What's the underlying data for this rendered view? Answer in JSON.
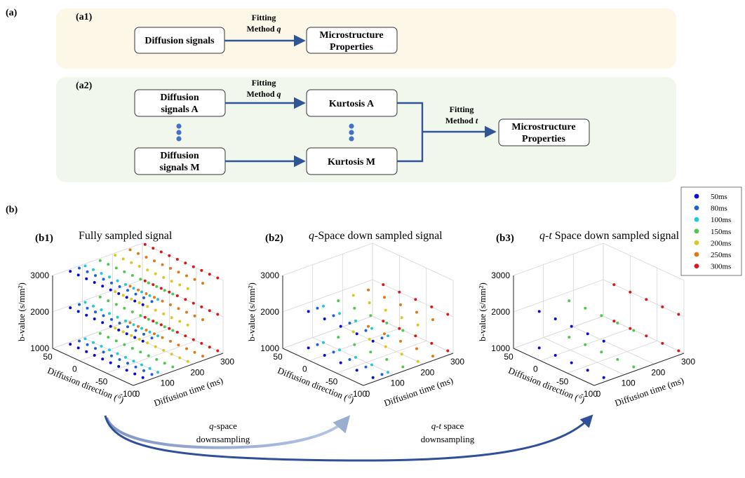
{
  "panel_a": {
    "label": "(a)",
    "a1": {
      "label": "(a1)",
      "input_box": "Diffusion signals",
      "arrow_label_line1": "Fitting",
      "arrow_label_line2": "Method ",
      "arrow_label_var": "q",
      "output_line1": "Microstructure",
      "output_line2": "Properties"
    },
    "a2": {
      "label": "(a2)",
      "input_a_line1": "Diffusion",
      "input_a_line2": "signals A",
      "input_m_line1": "Diffusion",
      "input_m_line2": "signals M",
      "fit_q_line1": "Fitting",
      "fit_q_line2": "Method ",
      "fit_q_var": "q",
      "kurtosis_a": "Kurtosis A",
      "kurtosis_m": "Kurtosis M",
      "fit_t_line1": "Fitting",
      "fit_t_line2": "Method ",
      "fit_t_var": "t",
      "output_line1": "Microstructure",
      "output_line2": "Properties"
    }
  },
  "panel_b": {
    "label": "(b)",
    "legend": [
      {
        "label": "50ms",
        "color": "#0a0ad0"
      },
      {
        "label": "80ms",
        "color": "#1f5fd6"
      },
      {
        "label": "100ms",
        "color": "#20c8d8"
      },
      {
        "label": "150ms",
        "color": "#50c850"
      },
      {
        "label": "200ms",
        "color": "#d8c820"
      },
      {
        "label": "250ms",
        "color": "#e07818"
      },
      {
        "label": "300ms",
        "color": "#d81818"
      }
    ],
    "plots": [
      {
        "id": "b1",
        "label": "(b1)",
        "title_var": "",
        "title_text": "Fully sampled signal"
      },
      {
        "id": "b2",
        "label": "(b2)",
        "title_var": "q",
        "title_text": "-Space down sampled signal"
      },
      {
        "id": "b3",
        "label": "(b3)",
        "title_var": "q-t",
        "title_text": " Space down sampled signal"
      }
    ],
    "axes": {
      "z_label": "b-value (s/mm²)",
      "z_ticks": [
        "1000",
        "2000",
        "3000"
      ],
      "y_label": "Diffusion direction (°)",
      "y_ticks": [
        "50",
        "0",
        "-50",
        "-100"
      ],
      "x_label": "Diffusion time (ms)",
      "x_ticks": [
        "0",
        "100",
        "200",
        "300"
      ]
    },
    "arrows": {
      "q_line1_var": "q",
      "q_line1_text": "-space",
      "q_line2": "downsampling",
      "qt_line1_var": "q-t",
      "qt_line1_text": " space",
      "qt_line2": "downsampling"
    }
  },
  "chart_data": [
    {
      "type": "scatter",
      "title": "Fully sampled signal",
      "xlabel": "Diffusion time (ms)",
      "ylabel": "Diffusion direction (°)",
      "zlabel": "b-value (s/mm²)",
      "xlim": [
        0,
        300
      ],
      "ylim": [
        -100,
        50
      ],
      "zlim": [
        1000,
        3000
      ],
      "series": [
        {
          "name": "50ms",
          "x": 50,
          "b_values": [
            1000,
            2000,
            3000
          ],
          "directions": [
            -90,
            -75,
            -60,
            -45,
            -30,
            -15,
            0,
            15,
            30,
            45
          ]
        },
        {
          "name": "80ms",
          "x": 80,
          "b_values": [
            1000,
            2000,
            3000
          ],
          "directions": [
            -90,
            -75,
            -60,
            -45,
            -30,
            -15,
            0,
            15,
            30,
            45
          ]
        },
        {
          "name": "100ms",
          "x": 100,
          "b_values": [
            1000,
            2000,
            3000
          ],
          "directions": [
            -90,
            -75,
            -60,
            -45,
            -30,
            -15,
            0,
            15,
            30,
            45
          ]
        },
        {
          "name": "150ms",
          "x": 150,
          "b_values": [
            1000,
            2000,
            3000
          ],
          "directions": [
            -90,
            -75,
            -60,
            -45,
            -30,
            -15,
            0,
            15,
            30,
            45
          ]
        },
        {
          "name": "200ms",
          "x": 200,
          "b_values": [
            1000,
            2000,
            3000
          ],
          "directions": [
            -90,
            -75,
            -60,
            -45,
            -30,
            -15,
            0,
            15,
            30,
            45
          ]
        },
        {
          "name": "250ms",
          "x": 250,
          "b_values": [
            1000,
            2000,
            3000
          ],
          "directions": [
            -90,
            -75,
            -60,
            -45,
            -30,
            -15,
            0,
            15,
            30,
            45
          ]
        },
        {
          "name": "300ms",
          "x": 300,
          "b_values": [
            1000,
            2000,
            3000
          ],
          "directions": [
            -90,
            -75,
            -60,
            -45,
            -30,
            -15,
            0,
            15,
            30,
            45
          ]
        }
      ]
    },
    {
      "type": "scatter",
      "title": "q-Space down sampled signal",
      "xlabel": "Diffusion time (ms)",
      "ylabel": "Diffusion direction (°)",
      "zlabel": "b-value (s/mm²)",
      "xlim": [
        0,
        300
      ],
      "ylim": [
        -100,
        50
      ],
      "zlim": [
        1000,
        3000
      ],
      "series": [
        {
          "name": "50ms",
          "x": 50,
          "b_values": [
            1000,
            2000
          ],
          "directions": [
            -90,
            -60,
            -30,
            0,
            30
          ]
        },
        {
          "name": "80ms",
          "x": 80,
          "b_values": [
            1000,
            2000
          ],
          "directions": [
            -90,
            -60,
            -30,
            0,
            30
          ]
        },
        {
          "name": "100ms",
          "x": 100,
          "b_values": [
            1000,
            2000
          ],
          "directions": [
            -90,
            -60,
            -30,
            0,
            30
          ]
        },
        {
          "name": "150ms",
          "x": 150,
          "b_values": [
            1000,
            2000
          ],
          "directions": [
            -90,
            -60,
            -30,
            0,
            30
          ]
        },
        {
          "name": "200ms",
          "x": 200,
          "b_values": [
            1000,
            2000
          ],
          "directions": [
            -90,
            -60,
            -30,
            0,
            30
          ]
        },
        {
          "name": "250ms",
          "x": 250,
          "b_values": [
            1000,
            2000
          ],
          "directions": [
            -90,
            -60,
            -30,
            0,
            30
          ]
        },
        {
          "name": "300ms",
          "x": 300,
          "b_values": [
            1000,
            2000
          ],
          "directions": [
            -90,
            -60,
            -30,
            0,
            30
          ]
        }
      ]
    },
    {
      "type": "scatter",
      "title": "q-t Space down sampled signal",
      "xlabel": "Diffusion time (ms)",
      "ylabel": "Diffusion direction (°)",
      "zlabel": "b-value (s/mm²)",
      "xlim": [
        0,
        300
      ],
      "ylim": [
        -100,
        50
      ],
      "zlim": [
        1000,
        3000
      ],
      "series": [
        {
          "name": "50ms",
          "x": 50,
          "b_values": [
            1000,
            2000
          ],
          "directions": [
            -90,
            -60,
            -30,
            0,
            30
          ]
        },
        {
          "name": "150ms",
          "x": 150,
          "b_values": [
            1000,
            2000
          ],
          "directions": [
            -90,
            -60,
            -30,
            0,
            30
          ]
        },
        {
          "name": "300ms",
          "x": 300,
          "b_values": [
            1000,
            2000
          ],
          "directions": [
            -90,
            -60,
            -30,
            0,
            30
          ]
        }
      ]
    }
  ]
}
